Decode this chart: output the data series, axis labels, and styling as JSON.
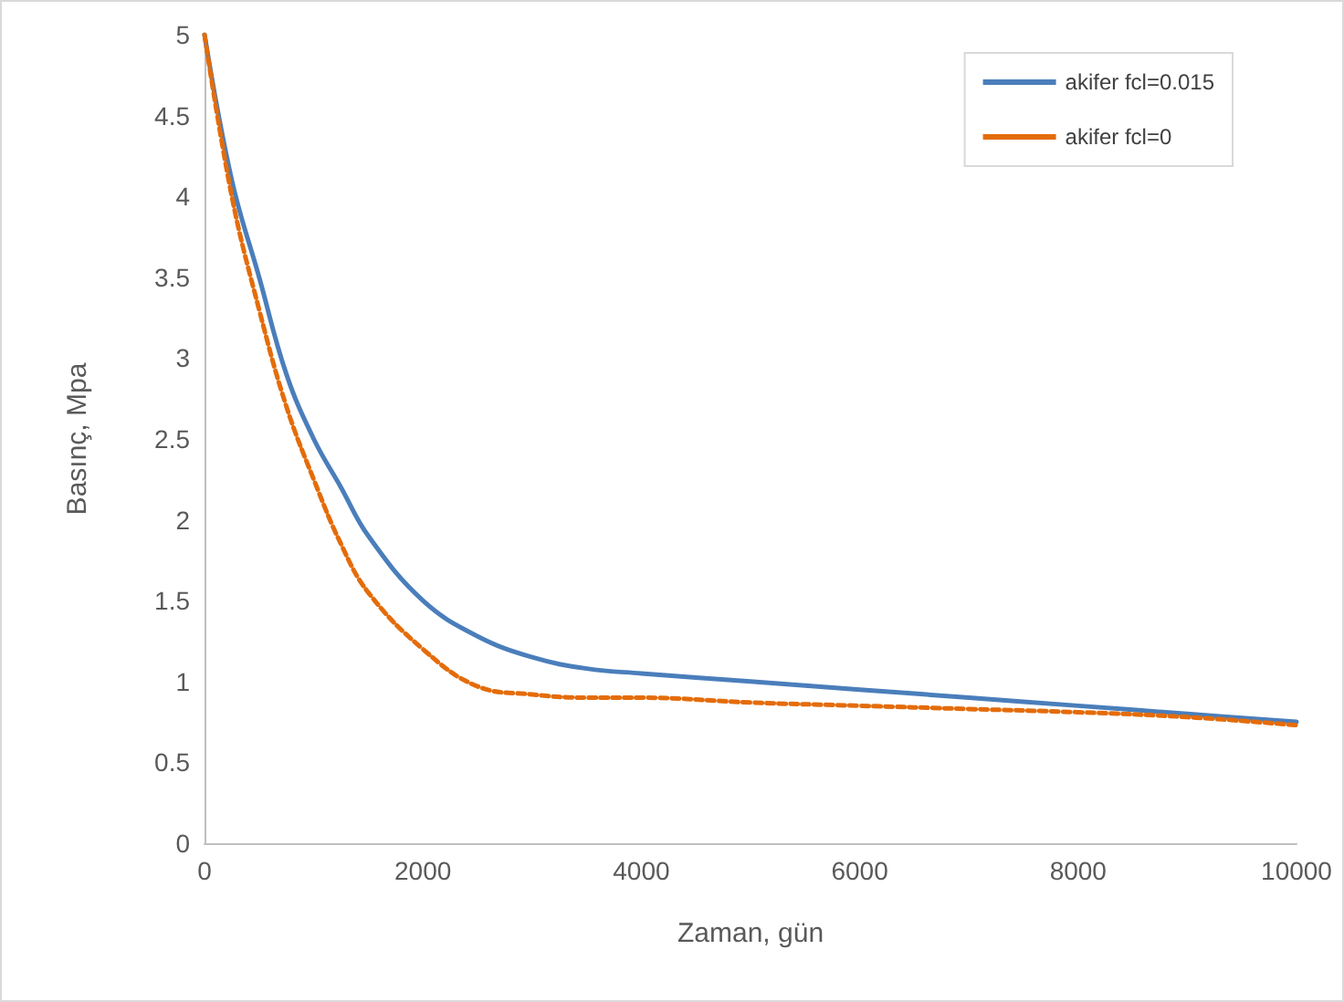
{
  "chart_data": {
    "type": "line",
    "xlabel": "Zaman, gün",
    "ylabel": "Basınç, Mpa",
    "x": [
      0,
      250,
      500,
      750,
      1000,
      1250,
      1500,
      2000,
      2500,
      3000,
      3500,
      4000,
      5000,
      6000,
      7000,
      8000,
      9000,
      10000
    ],
    "series": [
      {
        "name": "akifer fcl=0.015",
        "color": "#4a7ebb",
        "line_style": "solid",
        "values": [
          5.0,
          4.1,
          3.5,
          2.9,
          2.5,
          2.2,
          1.9,
          1.5,
          1.28,
          1.15,
          1.08,
          1.05,
          1.0,
          0.95,
          0.9,
          0.85,
          0.8,
          0.75
        ]
      },
      {
        "name": "akifer fcl=0",
        "color": "#e46c0a",
        "line_style": "dashed",
        "values": [
          5.0,
          4.0,
          3.3,
          2.7,
          2.25,
          1.85,
          1.55,
          1.2,
          0.97,
          0.92,
          0.9,
          0.9,
          0.87,
          0.85,
          0.83,
          0.81,
          0.78,
          0.73
        ]
      }
    ],
    "xlim": [
      0,
      10000
    ],
    "xticks": [
      0,
      2000,
      4000,
      6000,
      8000,
      10000
    ],
    "ylim": [
      0,
      5
    ],
    "yticks": [
      0,
      0.5,
      1,
      1.5,
      2,
      2.5,
      3,
      3.5,
      4,
      4.5,
      5
    ],
    "grid": false,
    "legend": "top right",
    "marker": "none"
  }
}
